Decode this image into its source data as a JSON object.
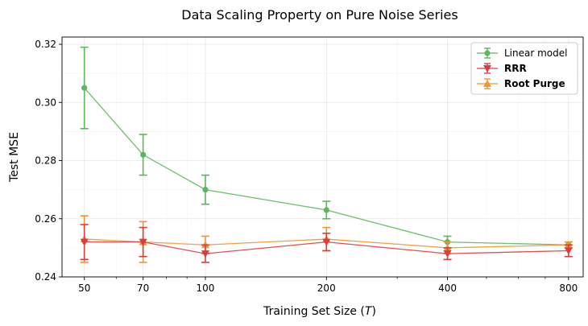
{
  "chart_data": {
    "type": "line",
    "title": "Data Scaling Property on Pure Noise Series",
    "xlabel_main": "Training Set Size (",
    "xlabel_var": "T",
    "xlabel_end": ")",
    "ylabel": "Test MSE",
    "x_scale": "log",
    "x": [
      50,
      70,
      100,
      200,
      400,
      800
    ],
    "x_tick_labels": [
      "50",
      "70",
      "100",
      "200",
      "400",
      "800"
    ],
    "xlim": [
      44,
      870
    ],
    "ylim": [
      0.24,
      0.3225
    ],
    "y_ticks": [
      0.24,
      0.26,
      0.28,
      0.3,
      0.32
    ],
    "y_tick_labels": [
      "0.24",
      "0.26",
      "0.28",
      "0.30",
      "0.32"
    ],
    "grid": true,
    "legend_position": "top-right",
    "series": [
      {
        "name": "Linear model",
        "color": "#5cb85c",
        "marker": "circle",
        "bold": false,
        "values": [
          0.305,
          0.282,
          0.27,
          0.263,
          0.252,
          0.251
        ],
        "err": [
          0.014,
          0.007,
          0.005,
          0.003,
          0.002,
          0.001
        ]
      },
      {
        "name": "Root Purge",
        "color": "#f0962d",
        "marker": "triangle-up",
        "bold": true,
        "values": [
          0.253,
          0.252,
          0.251,
          0.253,
          0.25,
          0.251
        ],
        "err": [
          0.008,
          0.007,
          0.003,
          0.004,
          0.002,
          0.001
        ]
      },
      {
        "name": "RRR",
        "color": "#e03b3b",
        "marker": "triangle-down",
        "bold": true,
        "values": [
          0.252,
          0.252,
          0.248,
          0.252,
          0.248,
          0.249
        ],
        "err": [
          0.006,
          0.005,
          0.003,
          0.003,
          0.002,
          0.002
        ]
      }
    ],
    "legend_order": [
      "Linear model",
      "RRR",
      "Root Purge"
    ]
  }
}
